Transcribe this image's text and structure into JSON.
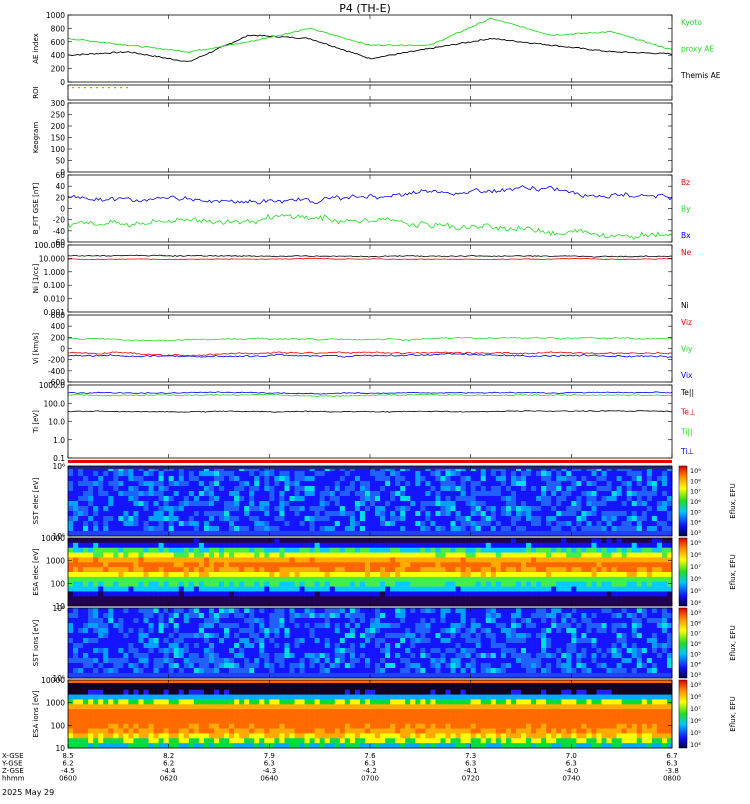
{
  "chart_data": {
    "type": "line",
    "title": "P4 (TH-E)",
    "date_label": "2025 May 29",
    "colors": {
      "black": "#000000",
      "green": "#22dd22",
      "blue": "#0000ee",
      "red": "#ee0000",
      "orange": "#ff8800"
    },
    "panels": [
      {
        "id": "ae",
        "ylabel": "AE index",
        "yticks": [
          "1000",
          "800",
          "600",
          "400",
          "200",
          "0"
        ],
        "legend": [
          {
            "text": "Kyoto",
            "color": "green"
          },
          {
            "text": "proxy AE",
            "color": "green"
          },
          {
            "text": "Themis AE",
            "color": "black"
          }
        ],
        "series": [
          {
            "name": "Themis AE",
            "color": "black",
            "x": [
              0,
              10,
              20,
              30,
              40,
              50,
              60,
              70,
              80,
              90,
              100
            ],
            "y": [
              400,
              450,
              300,
              700,
              650,
              350,
              500,
              650,
              550,
              450,
              420
            ]
          },
          {
            "name": "Kyoto proxy AE",
            "color": "green",
            "x": [
              0,
              10,
              20,
              30,
              40,
              50,
              60,
              70,
              80,
              90,
              100
            ],
            "y": [
              650,
              550,
              450,
              600,
              800,
              550,
              550,
              950,
              700,
              750,
              480
            ]
          }
        ]
      },
      {
        "id": "roi",
        "ylabel": "ROI",
        "yticks": []
      },
      {
        "id": "keogram",
        "ylabel": "Keogram",
        "yticks": [
          "300",
          "250",
          "200",
          "150",
          "100",
          "50",
          "0"
        ]
      },
      {
        "id": "bfield",
        "ylabel": "B_FIT GSE [nT]",
        "yticks": [
          "60",
          "40",
          "20",
          "0",
          "-20",
          "-40",
          "-60"
        ],
        "legend": [
          {
            "text": "Bz",
            "color": "red"
          },
          {
            "text": "By",
            "color": "green"
          },
          {
            "text": "Bx",
            "color": "blue"
          }
        ]
      },
      {
        "id": "density",
        "ylabel": "Ni [1/cc]",
        "yticks": [
          "100.000",
          "10.000",
          "1.000",
          "0.100",
          "0.010",
          "0.001"
        ],
        "legend": [
          {
            "text": "Ne",
            "color": "red"
          },
          {
            "text": "Ni",
            "color": "black"
          }
        ]
      },
      {
        "id": "velocity",
        "ylabel": "Vi [km/s]",
        "yticks": [
          "600",
          "400",
          "200",
          "0",
          "-200",
          "-400",
          "-600"
        ],
        "legend": [
          {
            "text": "Viz",
            "color": "red"
          },
          {
            "text": "Viy",
            "color": "green"
          },
          {
            "text": "Vix",
            "color": "blue"
          }
        ]
      },
      {
        "id": "temperature",
        "ylabel": "Ti [eV]",
        "yticks": [
          "1000.0",
          "100.0",
          "10.0",
          "1.0",
          "0.1"
        ],
        "legend": [
          {
            "text": "Te||",
            "color": "black"
          },
          {
            "text": "Te⊥",
            "color": "red"
          },
          {
            "text": "Ti||",
            "color": "green"
          },
          {
            "text": "Ti⊥",
            "color": "blue"
          }
        ]
      },
      {
        "id": "sst_e",
        "ylabel": "SST elec [eV]",
        "yticks": [
          "10⁶",
          "10⁵"
        ],
        "colorbar": {
          "label": "Eflux, EFU",
          "ticks": [
            "10⁹",
            "10⁸",
            "10⁷",
            "10⁶",
            "10⁵",
            "10⁴",
            "10³"
          ]
        }
      },
      {
        "id": "esa_e",
        "ylabel": "ESA elec [eV]",
        "yticks": [
          "10000",
          "1000",
          "100",
          "10"
        ],
        "colorbar": {
          "label": "Eflux, EFU",
          "ticks": [
            "10⁹",
            "10⁸",
            "10⁷",
            "10⁶",
            "10⁵",
            "10⁴"
          ]
        }
      },
      {
        "id": "sst_i",
        "ylabel": "SST ions [eV]",
        "yticks": [
          "10⁶",
          "10⁵"
        ],
        "colorbar": {
          "label": "Eflux, EFU",
          "ticks": [
            "10⁹",
            "10⁸",
            "10⁷",
            "10⁶",
            "10⁵",
            "10⁴",
            "10³"
          ]
        }
      },
      {
        "id": "esa_i",
        "ylabel": "ESA ions [eV]",
        "yticks": [
          "10000",
          "1000",
          "100",
          "10"
        ],
        "colorbar": {
          "label": "Eflux, EFU",
          "ticks": [
            "10⁹",
            "10⁸",
            "10⁷",
            "10⁶",
            "10⁵",
            "10⁴"
          ]
        }
      }
    ],
    "x_axis": {
      "row_labels": [
        "X-GSE",
        "Y-GSE",
        "Z-GSE",
        "hhmm"
      ],
      "ticks": [
        {
          "values": [
            "8.5",
            "6.2",
            "-4.5",
            "0600"
          ]
        },
        {
          "values": [
            "8.2",
            "6.2",
            "-4.4",
            "0620"
          ]
        },
        {
          "values": [
            "7.9",
            "6.3",
            "-4.3",
            "0640"
          ]
        },
        {
          "values": [
            "7.6",
            "6.3",
            "-4.2",
            "0700"
          ]
        },
        {
          "values": [
            "7.3",
            "6.3",
            "-4.1",
            "0720"
          ]
        },
        {
          "values": [
            "7.0",
            "6.3",
            "-4.0",
            "0740"
          ]
        },
        {
          "values": [
            "6.7",
            "6.3",
            "-3.8",
            "0800"
          ]
        }
      ]
    }
  }
}
